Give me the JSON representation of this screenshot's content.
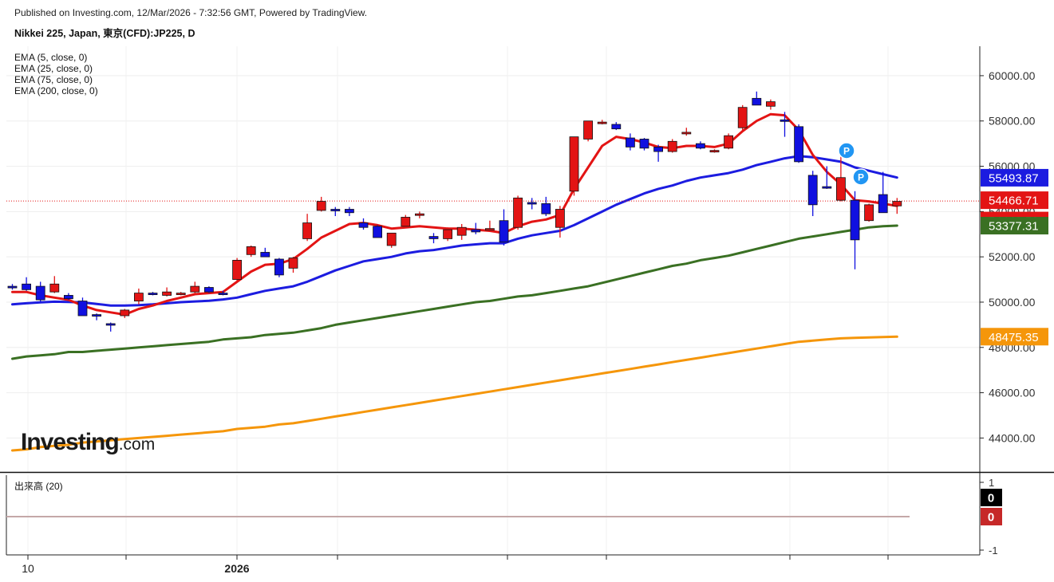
{
  "header": {
    "published": "Published on Investing.com, 12/Mar/2026 - 7:32:56 GMT, Powered by TradingView.",
    "title": "Nikkei 225, Japan, 東京(CFD):JP225, D"
  },
  "indicators": [
    "EMA (5, close, 0)",
    "EMA (25, close, 0)",
    "EMA (75, close, 0)",
    "EMA (200, close, 0)"
  ],
  "logo": {
    "main": "Investing",
    "suffix": ".com"
  },
  "volume_panel": {
    "label": "出来高 (20)",
    "ticks": [
      "1",
      "-1"
    ],
    "badges": [
      {
        "value": "0",
        "color": "#000000"
      },
      {
        "value": "0",
        "color": "#c62828"
      }
    ]
  },
  "chart_data": {
    "type": "candlestick",
    "price_axis": {
      "ticks": [
        60000,
        58000,
        56000,
        54000,
        52000,
        50000,
        48000,
        46000,
        44000
      ],
      "tick_labels": [
        "60000.00",
        "58000.00",
        "56000.00",
        "54000.00",
        "52000.00",
        "50000.00",
        "48000.00",
        "46000.00",
        "44000.00"
      ],
      "range": [
        42500,
        61300
      ]
    },
    "x_axis": {
      "labels": [
        {
          "text": "10",
          "bar": 1
        },
        {
          "text": "2026",
          "bar": 17
        }
      ]
    },
    "colors": {
      "up": "#e31414",
      "down": "#1010e0",
      "ema5": "#e31414",
      "ema25": "#1c1ce0",
      "ema75": "#3a7023",
      "ema200": "#f5960a"
    },
    "last_value_badges": [
      {
        "label": "55493.87",
        "value": 55493.87,
        "color": "#1c1ce0"
      },
      {
        "label": "54466.71",
        "value": 54466.71,
        "color": "#e31414"
      },
      {
        "label": "54449.50",
        "value": 54449.5,
        "color": "#e31414"
      },
      {
        "label": "53377.31",
        "value": 53377.31,
        "color": "#3a7023"
      },
      {
        "label": "48475.35",
        "value": 48475.35,
        "color": "#f5960a"
      }
    ],
    "current_price_line": 54466.71,
    "markers": [
      {
        "text": "P",
        "bar": 60
      },
      {
        "text": "P",
        "bar": 61
      }
    ],
    "candles": [
      {
        "o": 50700,
        "h": 50800,
        "l": 50550,
        "c": 50650
      },
      {
        "o": 50800,
        "h": 51100,
        "l": 50500,
        "c": 50550
      },
      {
        "o": 50700,
        "h": 50900,
        "l": 50000,
        "c": 50100
      },
      {
        "o": 50450,
        "h": 51150,
        "l": 50400,
        "c": 50800
      },
      {
        "o": 50300,
        "h": 50400,
        "l": 50100,
        "c": 50150
      },
      {
        "o": 50050,
        "h": 50200,
        "l": 49400,
        "c": 49400
      },
      {
        "o": 49450,
        "h": 49500,
        "l": 49200,
        "c": 49400
      },
      {
        "o": 49050,
        "h": 49100,
        "l": 48700,
        "c": 49000
      },
      {
        "o": 49400,
        "h": 49700,
        "l": 49300,
        "c": 49650
      },
      {
        "o": 50050,
        "h": 50600,
        "l": 49900,
        "c": 50400
      },
      {
        "o": 50400,
        "h": 50450,
        "l": 50300,
        "c": 50350
      },
      {
        "o": 50300,
        "h": 50650,
        "l": 50250,
        "c": 50450
      },
      {
        "o": 50350,
        "h": 50450,
        "l": 50300,
        "c": 50400
      },
      {
        "o": 50450,
        "h": 50900,
        "l": 50400,
        "c": 50700
      },
      {
        "o": 50650,
        "h": 50700,
        "l": 50400,
        "c": 50450
      },
      {
        "o": 50400,
        "h": 50500,
        "l": 50300,
        "c": 50350
      },
      {
        "o": 51000,
        "h": 51950,
        "l": 50950,
        "c": 51850
      },
      {
        "o": 52100,
        "h": 52500,
        "l": 52000,
        "c": 52450
      },
      {
        "o": 52200,
        "h": 52400,
        "l": 52000,
        "c": 52000
      },
      {
        "o": 51900,
        "h": 51950,
        "l": 51100,
        "c": 51200
      },
      {
        "o": 51500,
        "h": 52000,
        "l": 51300,
        "c": 51950
      },
      {
        "o": 52800,
        "h": 53900,
        "l": 52700,
        "c": 53500
      },
      {
        "o": 54050,
        "h": 54650,
        "l": 54000,
        "c": 54450
      },
      {
        "o": 54100,
        "h": 54200,
        "l": 53800,
        "c": 54050
      },
      {
        "o": 54100,
        "h": 54200,
        "l": 53800,
        "c": 53950
      },
      {
        "o": 53500,
        "h": 53700,
        "l": 53200,
        "c": 53300
      },
      {
        "o": 53350,
        "h": 53400,
        "l": 52900,
        "c": 52850
      },
      {
        "o": 52500,
        "h": 53050,
        "l": 52400,
        "c": 53050
      },
      {
        "o": 53350,
        "h": 53850,
        "l": 53300,
        "c": 53750
      },
      {
        "o": 53900,
        "h": 54000,
        "l": 53700,
        "c": 53900
      },
      {
        "o": 52900,
        "h": 53050,
        "l": 52600,
        "c": 52800
      },
      {
        "o": 52800,
        "h": 53300,
        "l": 52700,
        "c": 53200
      },
      {
        "o": 52950,
        "h": 53450,
        "l": 52750,
        "c": 53300
      },
      {
        "o": 53200,
        "h": 53500,
        "l": 53000,
        "c": 53100
      },
      {
        "o": 53200,
        "h": 53600,
        "l": 53100,
        "c": 53250
      },
      {
        "o": 53600,
        "h": 54100,
        "l": 52500,
        "c": 52650
      },
      {
        "o": 53300,
        "h": 54700,
        "l": 53200,
        "c": 54600
      },
      {
        "o": 54400,
        "h": 54600,
        "l": 54100,
        "c": 54350
      },
      {
        "o": 54350,
        "h": 54650,
        "l": 53800,
        "c": 53900
      },
      {
        "o": 53300,
        "h": 54250,
        "l": 52850,
        "c": 54100
      },
      {
        "o": 54900,
        "h": 57300,
        "l": 54700,
        "c": 57300
      },
      {
        "o": 57200,
        "h": 58000,
        "l": 57100,
        "c": 58000
      },
      {
        "o": 57900,
        "h": 58050,
        "l": 57850,
        "c": 57950
      },
      {
        "o": 57850,
        "h": 57950,
        "l": 57600,
        "c": 57650
      },
      {
        "o": 57250,
        "h": 57450,
        "l": 56700,
        "c": 56850
      },
      {
        "o": 57200,
        "h": 57250,
        "l": 56700,
        "c": 56800
      },
      {
        "o": 56850,
        "h": 56950,
        "l": 56200,
        "c": 56650
      },
      {
        "o": 56650,
        "h": 57200,
        "l": 56600,
        "c": 57100
      },
      {
        "o": 57450,
        "h": 57700,
        "l": 57350,
        "c": 57500
      },
      {
        "o": 57000,
        "h": 57100,
        "l": 56750,
        "c": 56800
      },
      {
        "o": 56700,
        "h": 56750,
        "l": 56600,
        "c": 56700
      },
      {
        "o": 56800,
        "h": 57450,
        "l": 56750,
        "c": 57350
      },
      {
        "o": 57700,
        "h": 58700,
        "l": 57600,
        "c": 58600
      },
      {
        "o": 59000,
        "h": 59300,
        "l": 58700,
        "c": 58700
      },
      {
        "o": 58650,
        "h": 58950,
        "l": 58500,
        "c": 58850
      },
      {
        "o": 58050,
        "h": 58400,
        "l": 57300,
        "c": 58000
      },
      {
        "o": 57750,
        "h": 57850,
        "l": 56150,
        "c": 56200
      },
      {
        "o": 55600,
        "h": 55800,
        "l": 53800,
        "c": 54300
      },
      {
        "o": 55100,
        "h": 56000,
        "l": 55000,
        "c": 55050
      },
      {
        "o": 54500,
        "h": 56900,
        "l": 54450,
        "c": 55500
      },
      {
        "o": 54500,
        "h": 54900,
        "l": 51450,
        "c": 52750
      },
      {
        "o": 53600,
        "h": 54350,
        "l": 53550,
        "c": 54300
      },
      {
        "o": 54750,
        "h": 55750,
        "l": 53950,
        "c": 53950
      },
      {
        "o": 54250,
        "h": 54600,
        "l": 53900,
        "c": 54450
      }
    ],
    "ema5": [
      50450,
      50450,
      50300,
      50200,
      50100,
      49850,
      49650,
      49550,
      49450,
      49700,
      49850,
      50050,
      50200,
      50350,
      50400,
      50450,
      50900,
      51350,
      51650,
      51700,
      51900,
      52350,
      52850,
      53150,
      53450,
      53500,
      53400,
      53250,
      53300,
      53350,
      53300,
      53250,
      53250,
      53200,
      53150,
      53050,
      53350,
      53550,
      53650,
      53850,
      55000,
      55950,
      56900,
      57300,
      57200,
      57050,
      56850,
      56800,
      56900,
      56900,
      56850,
      57000,
      57550,
      58000,
      58300,
      58250,
      57600,
      56500,
      55750,
      55200,
      54500,
      54450,
      54350,
      54250
    ],
    "ema25": [
      49900,
      49950,
      49990,
      50020,
      50010,
      49990,
      49920,
      49850,
      49850,
      49870,
      49900,
      49950,
      50000,
      50030,
      50060,
      50120,
      50200,
      50350,
      50500,
      50600,
      50700,
      50900,
      51150,
      51400,
      51600,
      51800,
      51900,
      52000,
      52150,
      52250,
      52300,
      52400,
      52500,
      52550,
      52600,
      52600,
      52800,
      52950,
      53050,
      53150,
      53400,
      53700,
      54000,
      54300,
      54550,
      54800,
      55000,
      55150,
      55350,
      55500,
      55600,
      55700,
      55850,
      56050,
      56200,
      56350,
      56450,
      56400,
      56300,
      56200,
      55950,
      55800,
      55650,
      55500
    ],
    "ema75": [
      47500,
      47600,
      47650,
      47700,
      47800,
      47800,
      47850,
      47900,
      47950,
      48000,
      48050,
      48100,
      48150,
      48200,
      48250,
      48350,
      48400,
      48450,
      48550,
      48600,
      48650,
      48750,
      48850,
      49000,
      49100,
      49200,
      49300,
      49400,
      49500,
      49600,
      49700,
      49800,
      49900,
      50000,
      50050,
      50150,
      50250,
      50300,
      50400,
      50500,
      50600,
      50700,
      50850,
      51000,
      51150,
      51300,
      51450,
      51600,
      51700,
      51850,
      51950,
      52050,
      52200,
      52350,
      52500,
      52650,
      52800,
      52900,
      53000,
      53100,
      53200,
      53300,
      53350,
      53377.31
    ],
    "ema200": [
      43450,
      43500,
      43600,
      43650,
      43700,
      43800,
      43850,
      43900,
      43950,
      44000,
      44050,
      44100,
      44150,
      44200,
      44250,
      44300,
      44400,
      44450,
      44500,
      44600,
      44650,
      44750,
      44850,
      44950,
      45050,
      45150,
      45250,
      45350,
      45450,
      45550,
      45650,
      45750,
      45850,
      45950,
      46050,
      46150,
      46250,
      46350,
      46450,
      46550,
      46650,
      46750,
      46850,
      46950,
      47050,
      47150,
      47250,
      47350,
      47450,
      47550,
      47650,
      47750,
      47850,
      47950,
      48050,
      48150,
      48250,
      48300,
      48350,
      48400,
      48420,
      48440,
      48460,
      48475.35
    ]
  }
}
